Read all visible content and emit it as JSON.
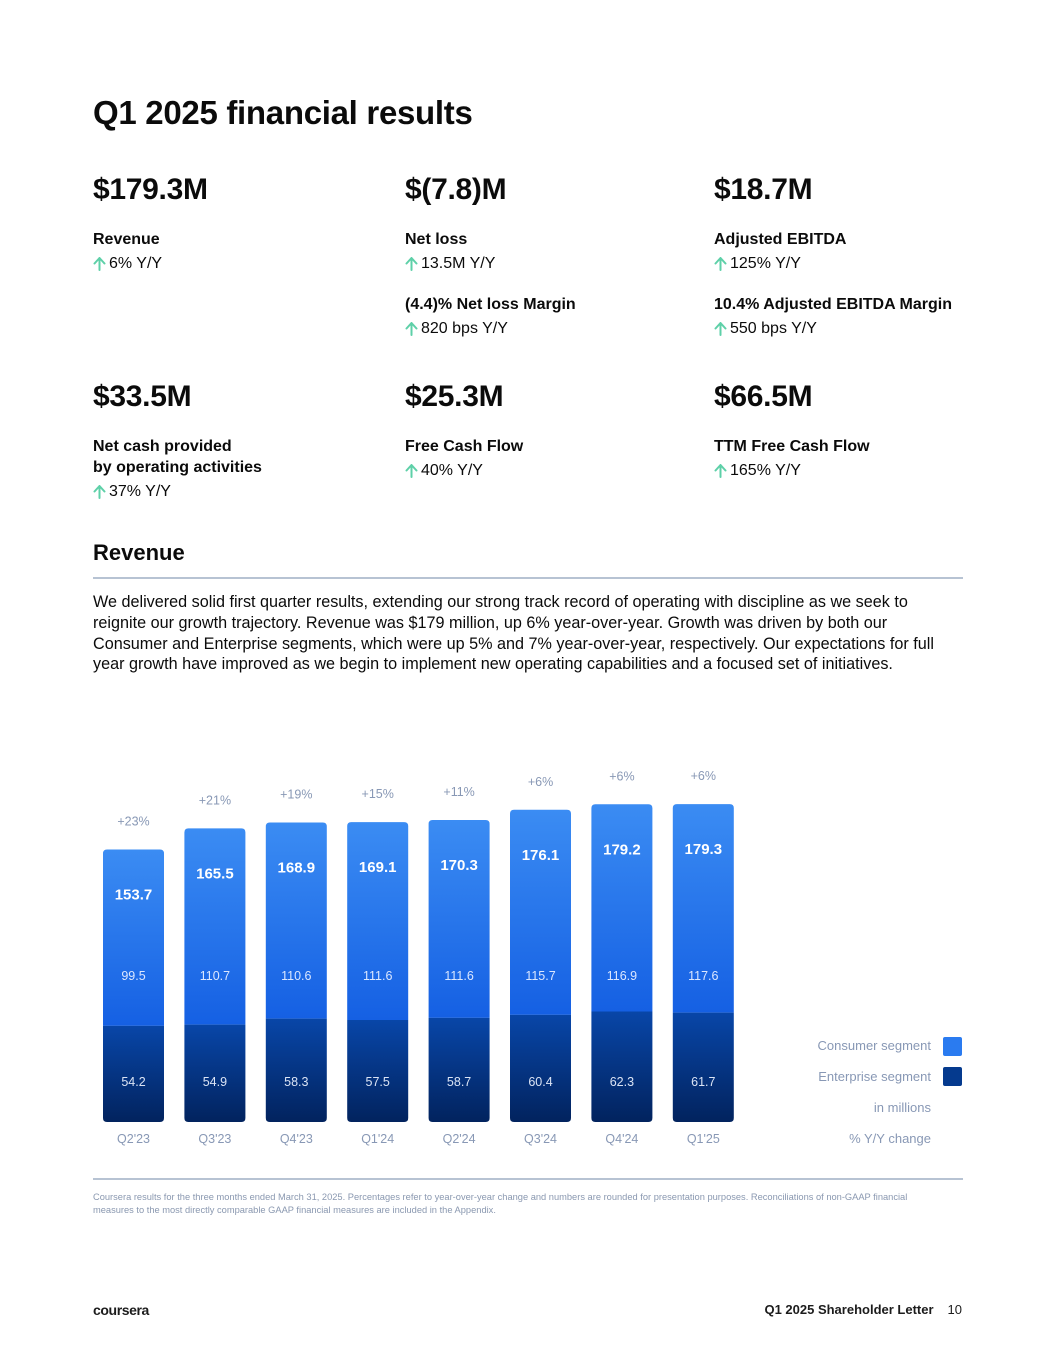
{
  "page": {
    "title": "Q1 2025 financial results"
  },
  "metrics": {
    "revenue": {
      "value": "$179.3M",
      "label": "Revenue",
      "change": "6% Y/Y"
    },
    "net_loss": {
      "value": "$(7.8)M",
      "label": "Net loss",
      "change": "13.5M Y/Y",
      "sub_label": "(4.4)% Net loss Margin",
      "sub_change": "820 bps Y/Y"
    },
    "adj_ebitda": {
      "value": "$18.7M",
      "label": "Adjusted EBITDA",
      "change": "125% Y/Y",
      "sub_label": "10.4% Adjusted EBITDA Margin",
      "sub_change": "550 bps Y/Y"
    },
    "op_cash": {
      "value": "$33.5M",
      "label_line1": "Net cash provided",
      "label_line2": "by operating activities",
      "change": "37% Y/Y"
    },
    "fcf": {
      "value": "$25.3M",
      "label": "Free Cash Flow",
      "change": "40% Y/Y"
    },
    "ttm_fcf": {
      "value": "$66.5M",
      "label": "TTM Free Cash Flow",
      "change": "165% Y/Y"
    }
  },
  "revenue_section": {
    "title": "Revenue",
    "paragraph": "We delivered solid first quarter results, extending our strong track record of operating with discipline as we seek to reignite our growth trajectory. Revenue was $179 million, up 6% year-over-year. Growth was driven by both our Consumer and Enterprise segments, which were up 5% and 7% year-over-year, respectively. Our expectations for full year growth have improved as we begin to implement new operating capabilities and a focused set of initiatives."
  },
  "legend": {
    "consumer": "Consumer segment",
    "enterprise": "Enterprise segment",
    "units": "in millions",
    "change": "% Y/Y change"
  },
  "colors": {
    "accent_up": "#5ed0a8",
    "consumer_top": "#3b8cf3",
    "consumer_bottom": "#1560e3",
    "enterprise_top": "#0846a8",
    "enterprise_bottom": "#02235e",
    "muted_text": "#8898b5"
  },
  "chart_data": {
    "type": "bar",
    "stacked": true,
    "categories": [
      "Q2'23",
      "Q3'23",
      "Q4'23",
      "Q1'24",
      "Q2'24",
      "Q3'24",
      "Q4'24",
      "Q1'25"
    ],
    "series": [
      {
        "name": "Enterprise segment",
        "values": [
          54.2,
          54.9,
          58.3,
          57.5,
          58.7,
          60.4,
          62.3,
          61.7
        ]
      },
      {
        "name": "Consumer segment",
        "values": [
          99.5,
          110.7,
          110.6,
          111.6,
          111.6,
          115.7,
          116.9,
          117.6
        ]
      }
    ],
    "totals": [
      153.7,
      165.5,
      168.9,
      169.1,
      170.3,
      176.1,
      179.2,
      179.3
    ],
    "yoy_change": [
      "+23%",
      "+21%",
      "+19%",
      "+15%",
      "+11%",
      "+6%",
      "+6%",
      "+6%"
    ],
    "ylabel": "in millions",
    "ylim": [
      0,
      190
    ]
  },
  "footnote": "Coursera results for the three months ended March 31, 2025. Percentages refer to year-over-year change and numbers are rounded for presentation purposes. Reconciliations of non-GAAP financial measures to the most directly comparable GAAP financial measures are included in the Appendix.",
  "footer": {
    "logo": "coursera",
    "doc_title": "Q1 2025 Shareholder Letter",
    "page_number": "10"
  }
}
